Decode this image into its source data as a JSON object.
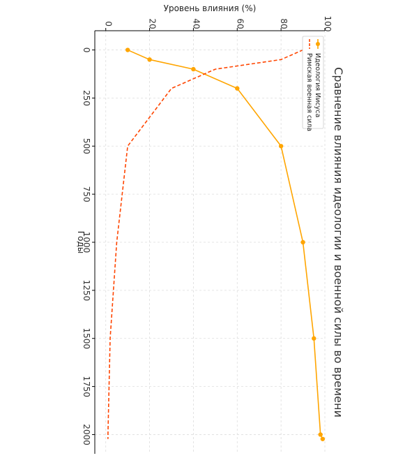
{
  "chart_data": {
    "type": "line",
    "title": "Сравнение влияния идеологии и военной силы во времени",
    "xlabel": "Годы",
    "ylabel": "Уровень влияния (%)",
    "xlim": [
      -100,
      2100
    ],
    "ylim": [
      -5,
      100
    ],
    "x_ticks": [
      0,
      250,
      500,
      750,
      1000,
      1250,
      1500,
      1750,
      2000
    ],
    "y_ticks": [
      0,
      20,
      40,
      60,
      80,
      100
    ],
    "grid": true,
    "legend_position": "top-right",
    "rotated": true,
    "series": [
      {
        "name": "Идеология Иисуса",
        "color": "#FFA500",
        "style": "solid",
        "marker": "circle",
        "x": [
          0,
          50,
          100,
          200,
          500,
          1000,
          1500,
          2000,
          2023
        ],
        "y": [
          10,
          20,
          40,
          60,
          80,
          90,
          95,
          98,
          99
        ]
      },
      {
        "name": "Римская военная сила",
        "color": "#FF4500",
        "style": "dashed",
        "marker": "none",
        "x": [
          0,
          50,
          100,
          200,
          500,
          1000,
          1500,
          2000,
          2023
        ],
        "y": [
          90,
          80,
          50,
          30,
          10,
          5,
          2,
          1,
          1
        ]
      }
    ]
  }
}
